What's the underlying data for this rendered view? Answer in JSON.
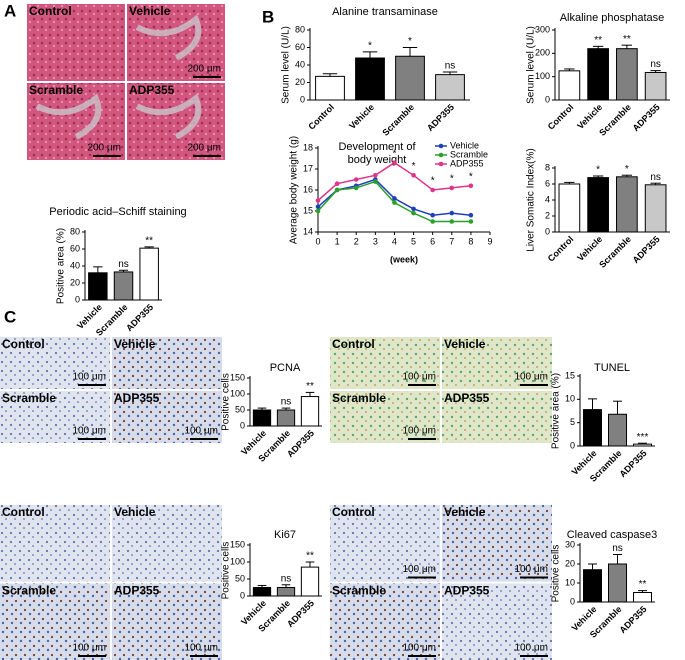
{
  "panel_labels": [
    "A",
    "B",
    "C"
  ],
  "images": [
    {
      "cells": [
        {
          "label": "Control"
        },
        {
          "label": "Vehicle",
          "scale": "200 μm"
        },
        {
          "label": "Scramble",
          "scale": "200 μm"
        },
        {
          "label": "ADP355",
          "scale": "200 μm"
        }
      ]
    },
    {
      "cells": [
        {
          "label": "Control",
          "scale": "100 μm"
        },
        {
          "label": "Vehicle"
        },
        {
          "label": "Scramble",
          "scale": "100 μm"
        },
        {
          "label": "ADP355",
          "scale": "100 μm"
        }
      ]
    },
    {
      "cells": [
        {
          "label": "Control",
          "scale": "100 μm"
        },
        {
          "label": "Vehicle",
          "scale": "100 μm"
        },
        {
          "label": "Scramble",
          "scale": "100 μm"
        },
        {
          "label": "ADP355"
        }
      ]
    },
    {
      "cells": [
        {
          "label": "Control"
        },
        {
          "label": "Vehicle"
        },
        {
          "label": "Scramble",
          "scale": "100 μm"
        },
        {
          "label": "ADP355",
          "scale": "100 μm"
        }
      ]
    },
    {
      "cells": [
        {
          "label": "Control",
          "scale": "100 μm"
        },
        {
          "label": "Vehicle",
          "scale": "100 μm"
        },
        {
          "label": "Scramble",
          "scale": "100 μm"
        },
        {
          "label": "ADP355",
          "scale": "100 μm"
        }
      ]
    }
  ],
  "chart_data": [
    {
      "type": "bar",
      "title": "Periodic acid–Schiff staining",
      "y_label": "Positive area (%)",
      "categories": [
        "Vehicle",
        "Scramble",
        "ADP355"
      ],
      "values": [
        32,
        33,
        61
      ],
      "errors": [
        7,
        2,
        1.5
      ],
      "colors": [
        "#000000",
        "#808080",
        "#ffffff"
      ],
      "annotations": [
        null,
        "ns",
        "**"
      ],
      "ylim": [
        0,
        80
      ],
      "yticks": [
        0,
        20,
        40,
        60,
        80
      ]
    },
    {
      "type": "bar",
      "title": "Alanine transaminase",
      "y_label": "Serum level (U/L)",
      "categories": [
        "Control",
        "Vehicle",
        "Scramble",
        "ADP355"
      ],
      "values": [
        27,
        48,
        50,
        29
      ],
      "errors": [
        3,
        7,
        10,
        3
      ],
      "colors": [
        "#ffffff",
        "#000000",
        "#808080",
        "#c8c8c8"
      ],
      "annotations": [
        null,
        "*",
        "*",
        "ns"
      ],
      "ylim": [
        0,
        80
      ],
      "yticks": [
        0,
        20,
        40,
        60,
        80
      ]
    },
    {
      "type": "bar",
      "title": "Alkaline phosphatase",
      "y_label": "Serum level (U/L)",
      "categories": [
        "Control",
        "Vehicle",
        "Scramble",
        "ADP355"
      ],
      "values": [
        125,
        220,
        220,
        118
      ],
      "errors": [
        8,
        10,
        15,
        8
      ],
      "colors": [
        "#ffffff",
        "#000000",
        "#808080",
        "#c8c8c8"
      ],
      "annotations": [
        null,
        "**",
        "**",
        "ns"
      ],
      "ylim": [
        0,
        300
      ],
      "yticks": [
        0,
        100,
        200,
        300
      ]
    },
    {
      "type": "line",
      "title": [
        "Development of",
        "body weight"
      ],
      "y_label": "Average body weight (g)",
      "x_label": "(week)",
      "x": [
        0,
        1,
        2,
        3,
        4,
        5,
        6,
        7,
        8
      ],
      "xlim": [
        0,
        9
      ],
      "xticks": [
        0,
        1,
        2,
        3,
        4,
        5,
        6,
        7,
        8,
        9
      ],
      "ylim": [
        14,
        18
      ],
      "yticks": [
        14,
        15,
        16,
        17,
        18
      ],
      "legend": "upper right",
      "series": [
        {
          "name": "Vehicle",
          "color": "#1f3fbf",
          "values": [
            15.2,
            16.0,
            16.2,
            16.5,
            15.6,
            15.1,
            14.8,
            14.9,
            14.8
          ]
        },
        {
          "name": "Scramble",
          "color": "#2aa02a",
          "values": [
            15.0,
            16.0,
            16.1,
            16.4,
            15.4,
            14.9,
            14.5,
            14.5,
            14.5
          ]
        },
        {
          "name": "ADP355",
          "color": "#e0338a",
          "values": [
            15.5,
            16.3,
            16.5,
            16.7,
            17.3,
            16.7,
            16.0,
            16.1,
            16.2
          ],
          "annotations": [
            null,
            null,
            null,
            null,
            "*",
            "*",
            "*",
            "*",
            "*"
          ]
        }
      ]
    },
    {
      "type": "bar",
      "y_label": "Liver Somatic Index(%)",
      "categories": [
        "Control",
        "Vehicle",
        "Scramble",
        "ADP355"
      ],
      "values": [
        6.0,
        6.8,
        6.9,
        5.9
      ],
      "errors": [
        0.2,
        0.2,
        0.2,
        0.2
      ],
      "colors": [
        "#ffffff",
        "#000000",
        "#808080",
        "#c8c8c8"
      ],
      "annotations": [
        null,
        "*",
        "*",
        "ns"
      ],
      "ylim": [
        0,
        8
      ],
      "yticks": [
        0,
        2,
        4,
        6,
        8
      ]
    },
    {
      "type": "bar",
      "title": "PCNA",
      "y_label": "Positive cells",
      "categories": [
        "Vehicle",
        "Scramble",
        "ADP355"
      ],
      "values": [
        50,
        50,
        92
      ],
      "errors": [
        6,
        6,
        13
      ],
      "colors": [
        "#000000",
        "#808080",
        "#ffffff"
      ],
      "annotations": [
        null,
        "ns",
        "**"
      ],
      "ylim": [
        0,
        150
      ],
      "yticks": [
        0,
        50,
        100,
        150
      ]
    },
    {
      "type": "bar",
      "title": "TUNEL",
      "y_label": "Positive area (%)",
      "categories": [
        "Vehicle",
        "Scramble",
        "ADP355"
      ],
      "values": [
        7.8,
        6.8,
        0.4
      ],
      "errors": [
        2.3,
        2.8,
        0.2
      ],
      "colors": [
        "#000000",
        "#808080",
        "#ffffff"
      ],
      "annotations": [
        null,
        null,
        "***"
      ],
      "ylim": [
        0,
        15
      ],
      "yticks": [
        0,
        5,
        10,
        15
      ]
    },
    {
      "type": "bar",
      "title": "Ki67",
      "y_label": "Positive cells",
      "categories": [
        "Vehicle",
        "Scramble",
        "ADP355"
      ],
      "values": [
        25,
        25,
        85
      ],
      "errors": [
        6,
        8,
        15
      ],
      "colors": [
        "#000000",
        "#808080",
        "#ffffff"
      ],
      "annotations": [
        null,
        "ns",
        "**"
      ],
      "ylim": [
        0,
        150
      ],
      "yticks": [
        0,
        50,
        100,
        150
      ]
    },
    {
      "type": "bar",
      "title": "Cleaved caspase3",
      "y_label": "Positive cells",
      "categories": [
        "Vehicle",
        "Scramble",
        "ADP355"
      ],
      "values": [
        17,
        20,
        5
      ],
      "errors": [
        3,
        5,
        1
      ],
      "colors": [
        "#000000",
        "#808080",
        "#ffffff"
      ],
      "annotations": [
        null,
        "ns",
        "**"
      ],
      "ylim": [
        0,
        30
      ],
      "yticks": [
        0,
        10,
        20,
        30
      ]
    }
  ]
}
